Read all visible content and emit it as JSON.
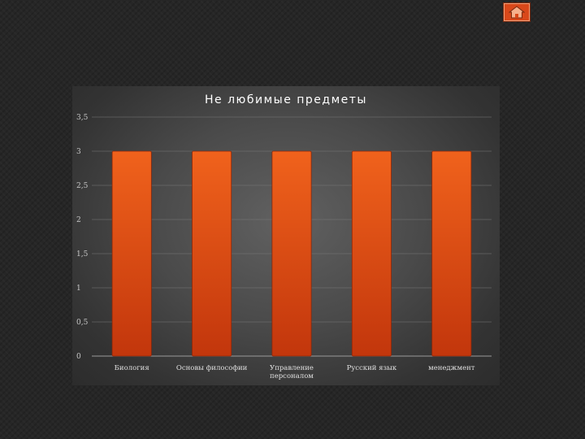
{
  "nav": {
    "home_icon": "home-icon"
  },
  "chart_data": {
    "type": "bar",
    "title": "Не любимые предметы",
    "categories": [
      "Биология",
      "Основы философии",
      "Управление персоналом",
      "Русский язык",
      "менеджмент"
    ],
    "category_lines": [
      [
        "Биология"
      ],
      [
        "Основы философии"
      ],
      [
        "Управление",
        "персоналом"
      ],
      [
        "Русский язык"
      ],
      [
        "менеджмент"
      ]
    ],
    "values": [
      3,
      3,
      3,
      3,
      3
    ],
    "ylim": [
      0,
      3.5
    ],
    "yticks": [
      "0",
      "0,5",
      "1",
      "1,5",
      "2",
      "2,5",
      "3",
      "3,5"
    ],
    "xlabel": "",
    "ylabel": "",
    "grid": true,
    "legend": "none",
    "colors": {
      "bar_top": "#f0621c",
      "bar_bottom": "#c2360c",
      "bar_edge": "#8f2608",
      "grid": "#7a7a7a"
    }
  }
}
